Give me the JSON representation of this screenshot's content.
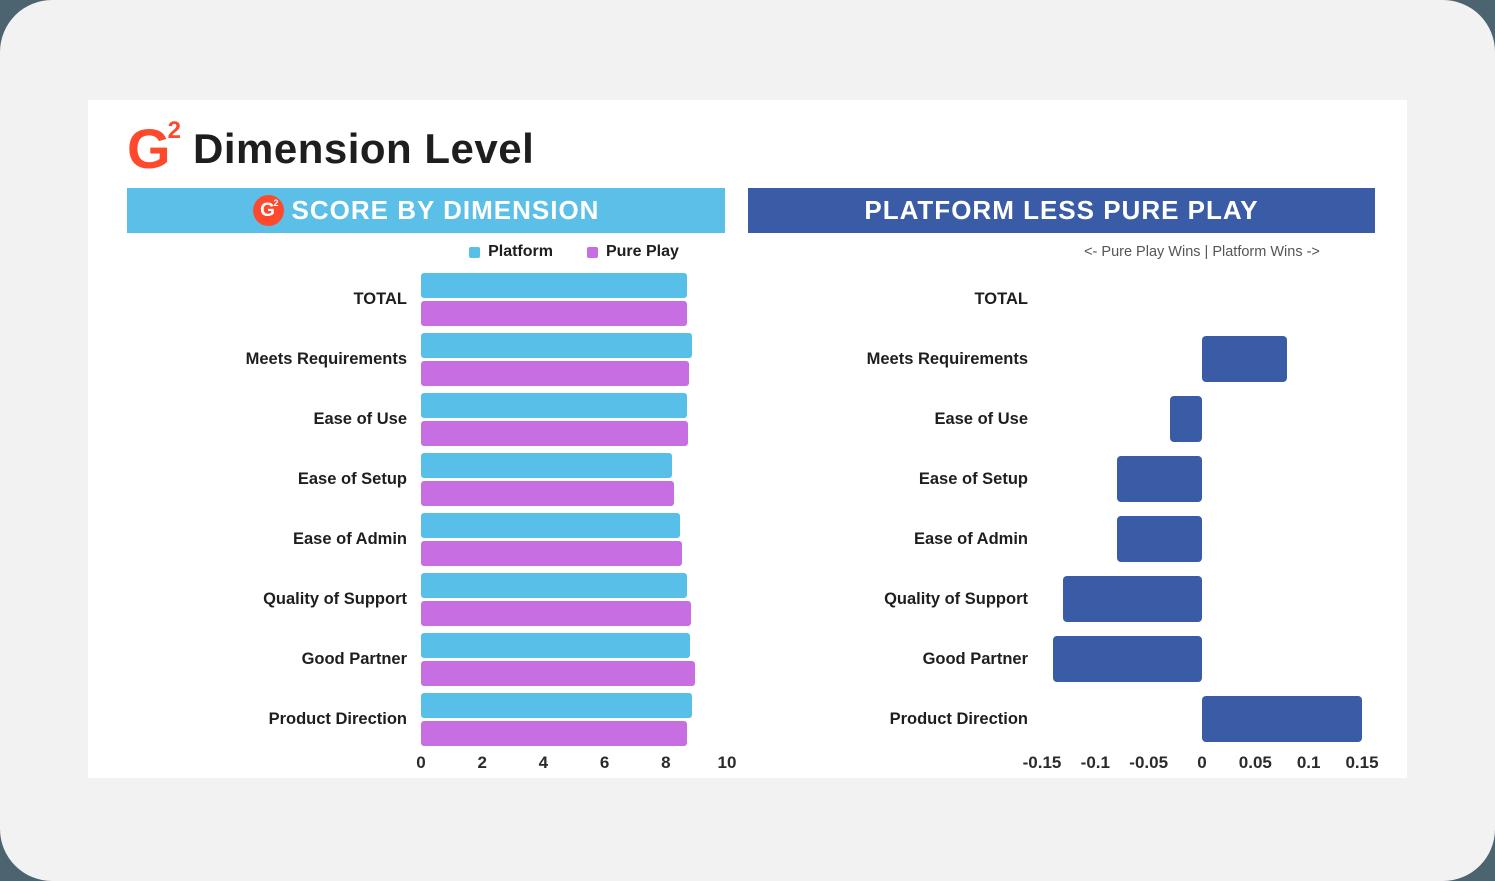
{
  "header": {
    "title": "Dimension Level",
    "logo": {
      "g": "G",
      "sup": "2"
    }
  },
  "colors": {
    "platform": "#57BFE8",
    "pure_play": "#C76EE3",
    "banner_light": "#5BBFE8",
    "banner_dark": "#3A5CA6",
    "diff_bar": "#3A5CA6",
    "logo_red": "#FF492C"
  },
  "left_panel": {
    "banner_label": "SCORE BY DIMENSION",
    "badge": {
      "g": "G",
      "sup": "2"
    }
  },
  "right_panel": {
    "banner_label": "PLATFORM LESS PURE PLAY",
    "subtitle": "<- Pure Play Wins | Platform Wins ->"
  },
  "chart_data": [
    {
      "type": "bar",
      "orientation": "horizontal",
      "title": "SCORE BY DIMENSION",
      "categories": [
        "TOTAL",
        "Meets Requirements",
        "Ease of Use",
        "Ease of Setup",
        "Ease of Admin",
        "Quality of Support",
        "Good Partner",
        "Product Direction"
      ],
      "series": [
        {
          "name": "Platform",
          "color_key": "platform",
          "values": [
            8.7,
            8.85,
            8.7,
            8.2,
            8.45,
            8.7,
            8.8,
            8.85
          ]
        },
        {
          "name": "Pure Play",
          "color_key": "pure_play",
          "values": [
            8.7,
            8.77,
            8.73,
            8.28,
            8.53,
            8.83,
            8.94,
            8.7
          ]
        }
      ],
      "xlim": [
        0,
        10
      ],
      "xticks": [
        0,
        2,
        4,
        6,
        8,
        10
      ],
      "xtick_labels": [
        "0",
        "2",
        "4",
        "6",
        "8",
        "10"
      ],
      "legend_position": "top",
      "grid": false
    },
    {
      "type": "bar",
      "orientation": "horizontal",
      "title": "PLATFORM LESS PURE PLAY",
      "annotation": "<- Pure Play Wins | Platform Wins ->",
      "categories": [
        "TOTAL",
        "Meets Requirements",
        "Ease of Use",
        "Ease of Setup",
        "Ease of Admin",
        "Quality of Support",
        "Good Partner",
        "Product Direction"
      ],
      "values": [
        0.0,
        0.08,
        -0.03,
        -0.08,
        -0.08,
        -0.13,
        -0.14,
        0.15
      ],
      "xlim": [
        -0.15,
        0.15
      ],
      "xticks": [
        -0.15,
        -0.1,
        -0.05,
        0,
        0.05,
        0.1,
        0.15
      ],
      "xtick_labels": [
        "-0.15",
        "-0.1",
        "-0.05",
        "0",
        "0.05",
        "0.1",
        "0.15"
      ],
      "grid": false
    }
  ]
}
